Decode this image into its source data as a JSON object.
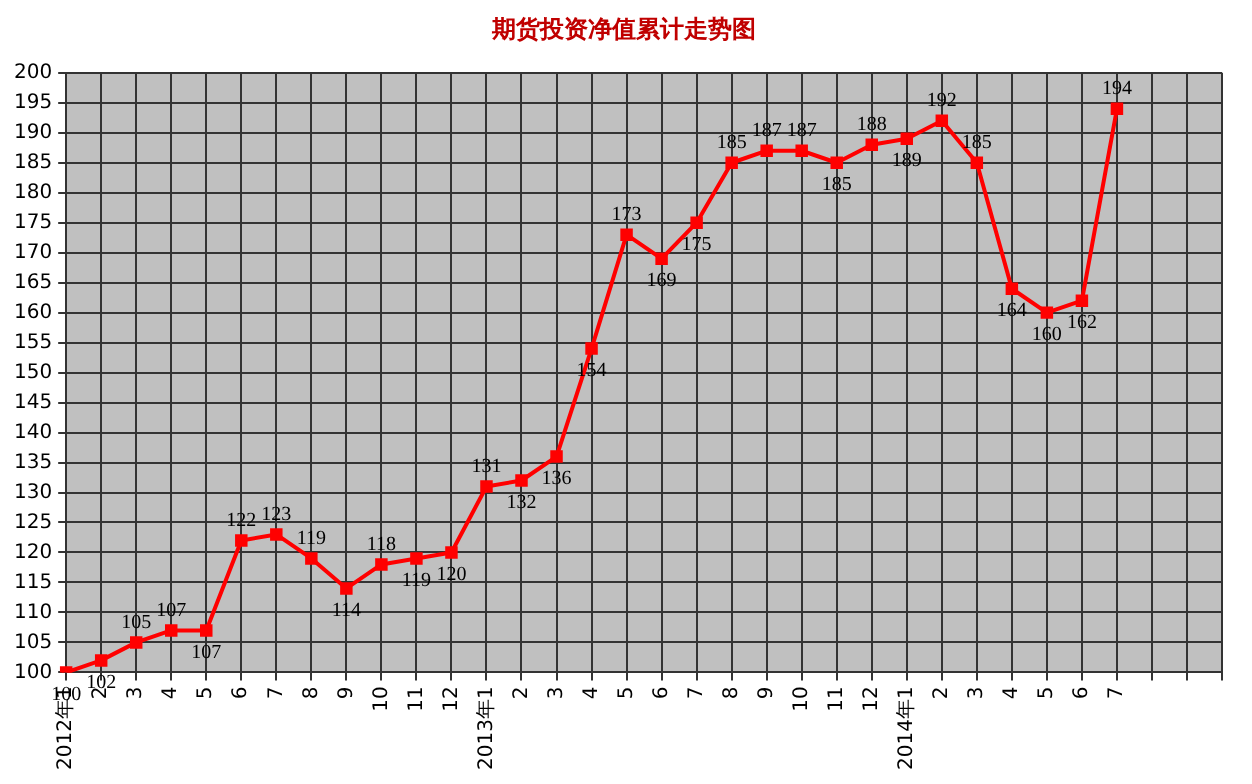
{
  "chart_data": {
    "type": "line",
    "title": "期货投资净值累计走势图",
    "categories": [
      "2012年1",
      "2",
      "3",
      "4",
      "5",
      "6",
      "7",
      "8",
      "9",
      "10",
      "11",
      "12",
      "2013年1",
      "2",
      "3",
      "4",
      "5",
      "6",
      "7",
      "8",
      "9",
      "10",
      "11",
      "12",
      "2014年1",
      "2",
      "3",
      "4",
      "5",
      "6",
      "7",
      null,
      null,
      null
    ],
    "series": [
      {
        "color": "#ff0000",
        "values": [
          100,
          102,
          105,
          107,
          107,
          122,
          123,
          119,
          114,
          118,
          119,
          120,
          131,
          132,
          136,
          154,
          173,
          169,
          175,
          185,
          187,
          187,
          185,
          188,
          189,
          192,
          185,
          164,
          160,
          162,
          194,
          null,
          null,
          null
        ]
      }
    ],
    "ylim": [
      100,
      200
    ],
    "yticks": [
      100,
      105,
      110,
      115,
      120,
      125,
      130,
      135,
      140,
      145,
      150,
      155,
      160,
      165,
      170,
      175,
      180,
      185,
      190,
      195,
      200
    ],
    "grid": true,
    "legend": false,
    "marker": "square",
    "line_style": "solid",
    "data_labels": true
  }
}
